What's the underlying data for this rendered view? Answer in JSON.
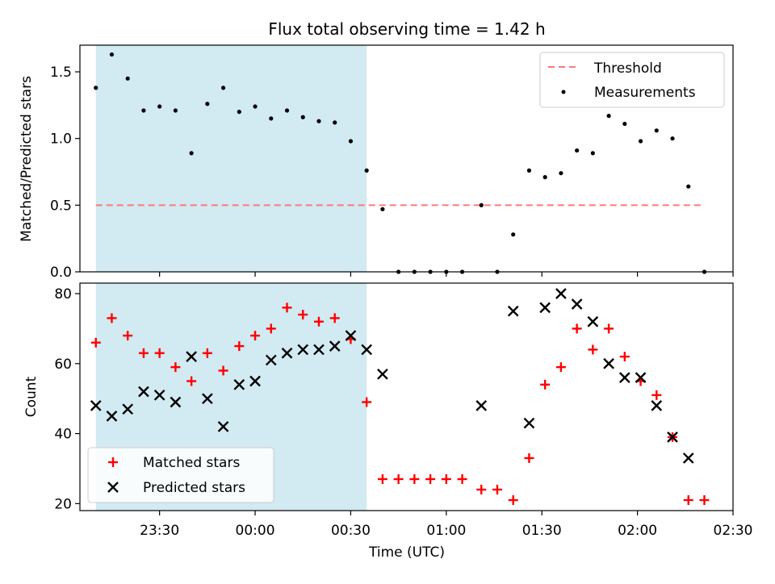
{
  "chart_data": [
    {
      "type": "scatter",
      "title": "Flux total observing time = 1.42 h",
      "ylabel": "Matched/Predicted stars",
      "xlabel": "",
      "ylim": [
        0,
        1.7
      ],
      "yticks": [
        "0.0",
        "0.5",
        "1.0",
        "1.5"
      ],
      "shaded_region": {
        "x_start": "23:10",
        "x_end": "00:35",
        "color": "#add8e6"
      },
      "legend": {
        "position": "top-right",
        "entries": [
          "Threshold",
          "Measurements"
        ]
      },
      "threshold": {
        "name": "Threshold",
        "value": 0.5,
        "x_start": "23:10",
        "x_end": "02:20",
        "color": "#ff7777"
      },
      "series": [
        {
          "name": "Measurements",
          "marker": "dot",
          "color": "#000000",
          "x": [
            "23:10",
            "23:15",
            "23:20",
            "23:25",
            "23:30",
            "23:35",
            "23:40",
            "23:45",
            "23:50",
            "23:55",
            "00:00",
            "00:05",
            "00:10",
            "00:15",
            "00:20",
            "00:25",
            "00:30",
            "00:35",
            "00:40",
            "00:45",
            "00:50",
            "00:55",
            "01:00",
            "01:05",
            "01:11",
            "01:16",
            "01:21",
            "01:26",
            "01:31",
            "01:36",
            "01:41",
            "01:46",
            "01:51",
            "01:56",
            "02:01",
            "02:06",
            "02:11",
            "02:16",
            "02:21"
          ],
          "values": [
            1.38,
            1.63,
            1.45,
            1.21,
            1.24,
            1.21,
            0.89,
            1.26,
            1.38,
            1.2,
            1.24,
            1.15,
            1.21,
            1.16,
            1.13,
            1.12,
            0.98,
            0.76,
            0.47,
            0,
            0,
            0,
            0,
            0,
            0.5,
            0,
            0.28,
            0.76,
            0.71,
            0.74,
            0.91,
            0.89,
            1.17,
            1.11,
            0.98,
            1.06,
            1.0,
            0.64,
            0
          ]
        }
      ]
    },
    {
      "type": "scatter",
      "title": "",
      "xlabel": "Time (UTC)",
      "ylabel": "Count",
      "ylim": [
        18,
        83
      ],
      "yticks": [
        "20",
        "40",
        "60",
        "80"
      ],
      "xlim": [
        "23:05",
        "02:30"
      ],
      "xticks": [
        "23:30",
        "00:00",
        "00:30",
        "01:00",
        "01:30",
        "02:00",
        "02:30"
      ],
      "shaded_region": {
        "x_start": "23:10",
        "x_end": "00:35",
        "color": "#add8e6"
      },
      "legend": {
        "position": "bottom-left",
        "entries": [
          "Matched stars",
          "Predicted stars"
        ]
      },
      "series": [
        {
          "name": "Matched stars",
          "marker": "plus",
          "color": "#ff0000",
          "x": [
            "23:10",
            "23:15",
            "23:20",
            "23:25",
            "23:30",
            "23:35",
            "23:40",
            "23:45",
            "23:50",
            "23:55",
            "00:00",
            "00:05",
            "00:10",
            "00:15",
            "00:20",
            "00:25",
            "00:30",
            "00:35",
            "00:40",
            "00:45",
            "00:50",
            "00:55",
            "01:00",
            "01:05",
            "01:11",
            "01:16",
            "01:21",
            "01:26",
            "01:31",
            "01:36",
            "01:41",
            "01:46",
            "01:51",
            "01:56",
            "02:01",
            "02:06",
            "02:11",
            "02:16",
            "02:21"
          ],
          "values": [
            66,
            73,
            68,
            63,
            63,
            59,
            55,
            63,
            58,
            65,
            68,
            70,
            76,
            74,
            72,
            73,
            67,
            49,
            27,
            27,
            27,
            27,
            27,
            27,
            24,
            24,
            21,
            33,
            54,
            59,
            70,
            64,
            70,
            62,
            55,
            51,
            39,
            21,
            21
          ]
        },
        {
          "name": "Predicted stars",
          "marker": "x",
          "color": "#000000",
          "x": [
            "23:10",
            "23:15",
            "23:20",
            "23:25",
            "23:30",
            "23:35",
            "23:40",
            "23:45",
            "23:50",
            "23:55",
            "00:00",
            "00:05",
            "00:10",
            "00:15",
            "00:20",
            "00:25",
            "00:30",
            "00:35",
            "00:40",
            "01:11",
            "01:21",
            "01:26",
            "01:31",
            "01:36",
            "01:41",
            "01:46",
            "01:51",
            "01:56",
            "02:01",
            "02:06",
            "02:11",
            "02:16"
          ],
          "values": [
            48,
            45,
            47,
            52,
            51,
            49,
            62,
            50,
            42,
            54,
            55,
            61,
            63,
            64,
            64,
            65,
            68,
            64,
            57,
            48,
            75,
            43,
            76,
            80,
            77,
            72,
            60,
            56,
            56,
            48,
            39,
            33
          ]
        }
      ]
    }
  ]
}
